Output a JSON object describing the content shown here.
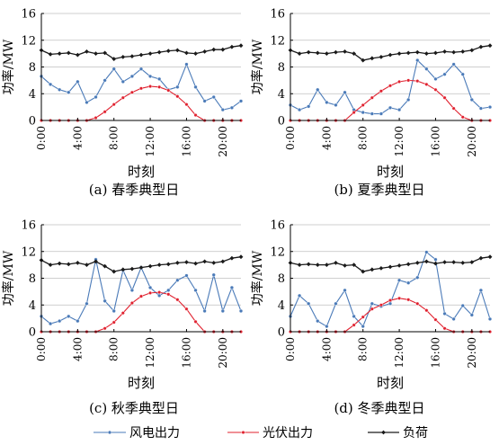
{
  "colors": {
    "wind": "#4a7ab8",
    "pv": "#e0202e",
    "load": "#1a1a1a",
    "axis": "#000000",
    "grid": "#bfbfbf"
  },
  "legend": {
    "wind": "风电出力",
    "pv": "光伏出力",
    "load": "负荷"
  },
  "chart_data": [
    {
      "type": "line",
      "caption": "(a) 春季典型日",
      "xlabel": "时刻",
      "ylabel": "功率/MW",
      "xlim": [
        0,
        22
      ],
      "ylim": [
        0,
        16
      ],
      "xticks": [
        "0:00",
        "4:00",
        "8:00",
        "12:00",
        "16:00",
        "20:00"
      ],
      "xtick_values": [
        0,
        4,
        8,
        12,
        16,
        20
      ],
      "yticks": [
        0,
        4,
        8,
        12,
        16
      ],
      "x": [
        0,
        1,
        2,
        3,
        4,
        5,
        6,
        7,
        8,
        9,
        10,
        11,
        12,
        13,
        14,
        15,
        16,
        17,
        18,
        19,
        20,
        21,
        22
      ],
      "series": [
        {
          "name": "风电出力",
          "key": "wind",
          "values": [
            6.6,
            5.4,
            4.6,
            4.2,
            5.8,
            2.7,
            3.5,
            6.0,
            7.7,
            5.8,
            6.6,
            7.7,
            6.6,
            6.2,
            4.6,
            5.0,
            8.4,
            5.0,
            2.9,
            3.5,
            1.6,
            1.9,
            2.9
          ]
        },
        {
          "name": "光伏出力",
          "key": "pv",
          "values": [
            0,
            0,
            0,
            0,
            0,
            0,
            0.4,
            1.3,
            2.4,
            3.4,
            4.2,
            4.8,
            5.1,
            5.0,
            4.5,
            3.6,
            2.4,
            0.8,
            0,
            0,
            0,
            0,
            0
          ]
        },
        {
          "name": "负荷",
          "key": "load",
          "values": [
            10.5,
            9.9,
            10.0,
            10.1,
            9.8,
            10.3,
            10.0,
            10.1,
            9.2,
            9.5,
            9.6,
            9.8,
            10.0,
            10.2,
            10.4,
            10.5,
            10.1,
            10.0,
            10.3,
            10.6,
            10.6,
            11.0,
            11.2
          ]
        }
      ]
    },
    {
      "type": "line",
      "caption": "(b) 夏季典型日",
      "xlabel": "时刻",
      "ylabel": "功率/MW",
      "xlim": [
        0,
        22
      ],
      "ylim": [
        0,
        16
      ],
      "xticks": [
        "0:00",
        "4:00",
        "8:00",
        "12:00",
        "16:00",
        "20:00"
      ],
      "xtick_values": [
        0,
        4,
        8,
        12,
        16,
        20
      ],
      "yticks": [
        0,
        4,
        8,
        12,
        16
      ],
      "x": [
        0,
        1,
        2,
        3,
        4,
        5,
        6,
        7,
        8,
        9,
        10,
        11,
        12,
        13,
        14,
        15,
        16,
        17,
        18,
        19,
        20,
        21,
        22
      ],
      "series": [
        {
          "name": "风电出力",
          "key": "wind",
          "values": [
            2.3,
            1.6,
            2.1,
            4.6,
            2.7,
            2.3,
            4.2,
            1.6,
            1.2,
            1.0,
            1.0,
            1.9,
            1.6,
            3.1,
            9.0,
            7.7,
            6.2,
            6.9,
            8.4,
            6.9,
            3.1,
            1.8,
            2.0
          ]
        },
        {
          "name": "光伏出力",
          "key": "pv",
          "values": [
            0,
            0,
            0,
            0,
            0,
            0,
            0,
            1.2,
            2.3,
            3.4,
            4.4,
            5.2,
            5.8,
            6.0,
            5.9,
            5.4,
            4.6,
            3.4,
            1.8,
            0.5,
            0,
            0,
            0
          ]
        },
        {
          "name": "负荷",
          "key": "load",
          "values": [
            10.5,
            10.0,
            10.2,
            10.1,
            10.0,
            10.2,
            10.3,
            10.0,
            9.0,
            9.3,
            9.5,
            9.8,
            10.0,
            10.1,
            10.2,
            10.0,
            10.1,
            10.3,
            10.2,
            10.3,
            10.5,
            11.0,
            11.2
          ]
        }
      ]
    },
    {
      "type": "line",
      "caption": "(c) 秋季典型日",
      "xlabel": "时刻",
      "ylabel": "功率/MW",
      "xlim": [
        0,
        22
      ],
      "ylim": [
        0,
        16
      ],
      "xticks": [
        "0:00",
        "4:00",
        "8:00",
        "12:00",
        "16:00",
        "20:00"
      ],
      "xtick_values": [
        0,
        4,
        8,
        12,
        16,
        20
      ],
      "yticks": [
        0,
        4,
        8,
        12,
        16
      ],
      "x": [
        0,
        1,
        2,
        3,
        4,
        5,
        6,
        7,
        8,
        9,
        10,
        11,
        12,
        13,
        14,
        15,
        16,
        17,
        18,
        19,
        20,
        21,
        22
      ],
      "series": [
        {
          "name": "风电出力",
          "key": "wind",
          "values": [
            2.3,
            1.2,
            1.6,
            2.3,
            1.6,
            4.2,
            10.8,
            4.6,
            3.1,
            9.2,
            6.2,
            9.6,
            6.6,
            5.4,
            6.2,
            7.7,
            8.4,
            6.2,
            3.1,
            8.5,
            3.1,
            6.6,
            3.1
          ]
        },
        {
          "name": "光伏出力",
          "key": "pv",
          "values": [
            0,
            0,
            0,
            0,
            0,
            0,
            0,
            0.5,
            1.4,
            2.8,
            4.3,
            5.3,
            5.8,
            5.9,
            5.6,
            4.8,
            3.4,
            1.5,
            0,
            0,
            0,
            0,
            0
          ]
        },
        {
          "name": "负荷",
          "key": "load",
          "values": [
            10.7,
            10.0,
            10.2,
            10.1,
            10.3,
            10.0,
            10.5,
            9.8,
            9.0,
            9.3,
            9.4,
            9.6,
            9.8,
            10.0,
            10.1,
            10.3,
            10.4,
            10.2,
            10.5,
            10.3,
            10.5,
            11.0,
            11.2
          ]
        }
      ]
    },
    {
      "type": "line",
      "caption": "(d) 冬季典型日",
      "xlabel": "时刻",
      "ylabel": "功率/MW",
      "xlim": [
        0,
        22
      ],
      "ylim": [
        0,
        16
      ],
      "xticks": [
        "0:00",
        "4:00",
        "8:00",
        "12:00",
        "16:00",
        "20:00"
      ],
      "xtick_values": [
        0,
        4,
        8,
        12,
        16,
        20
      ],
      "yticks": [
        0,
        4,
        8,
        12,
        16
      ],
      "x": [
        0,
        1,
        2,
        3,
        4,
        5,
        6,
        7,
        8,
        9,
        10,
        11,
        12,
        13,
        14,
        15,
        16,
        17,
        18,
        19,
        20,
        21,
        22
      ],
      "series": [
        {
          "name": "风电出力",
          "key": "wind",
          "values": [
            2.3,
            5.4,
            4.2,
            1.6,
            0.8,
            4.2,
            6.2,
            2.3,
            0.8,
            4.2,
            3.8,
            4.2,
            7.7,
            7.3,
            8.1,
            11.9,
            10.8,
            2.7,
            1.9,
            3.9,
            2.5,
            6.2,
            1.9
          ]
        },
        {
          "name": "光伏出力",
          "key": "pv",
          "values": [
            0,
            0,
            0,
            0,
            0,
            0,
            0,
            1.0,
            2.2,
            3.4,
            4.0,
            4.7,
            5.0,
            4.8,
            4.2,
            3.2,
            1.8,
            0.5,
            0,
            0,
            0,
            0,
            0
          ]
        },
        {
          "name": "负荷",
          "key": "load",
          "values": [
            10.3,
            10.0,
            10.1,
            10.0,
            10.0,
            10.3,
            9.9,
            10.0,
            9.0,
            9.3,
            9.5,
            9.7,
            9.9,
            10.1,
            10.3,
            10.5,
            10.2,
            10.4,
            10.4,
            10.3,
            10.4,
            11.0,
            11.2
          ]
        }
      ]
    }
  ]
}
